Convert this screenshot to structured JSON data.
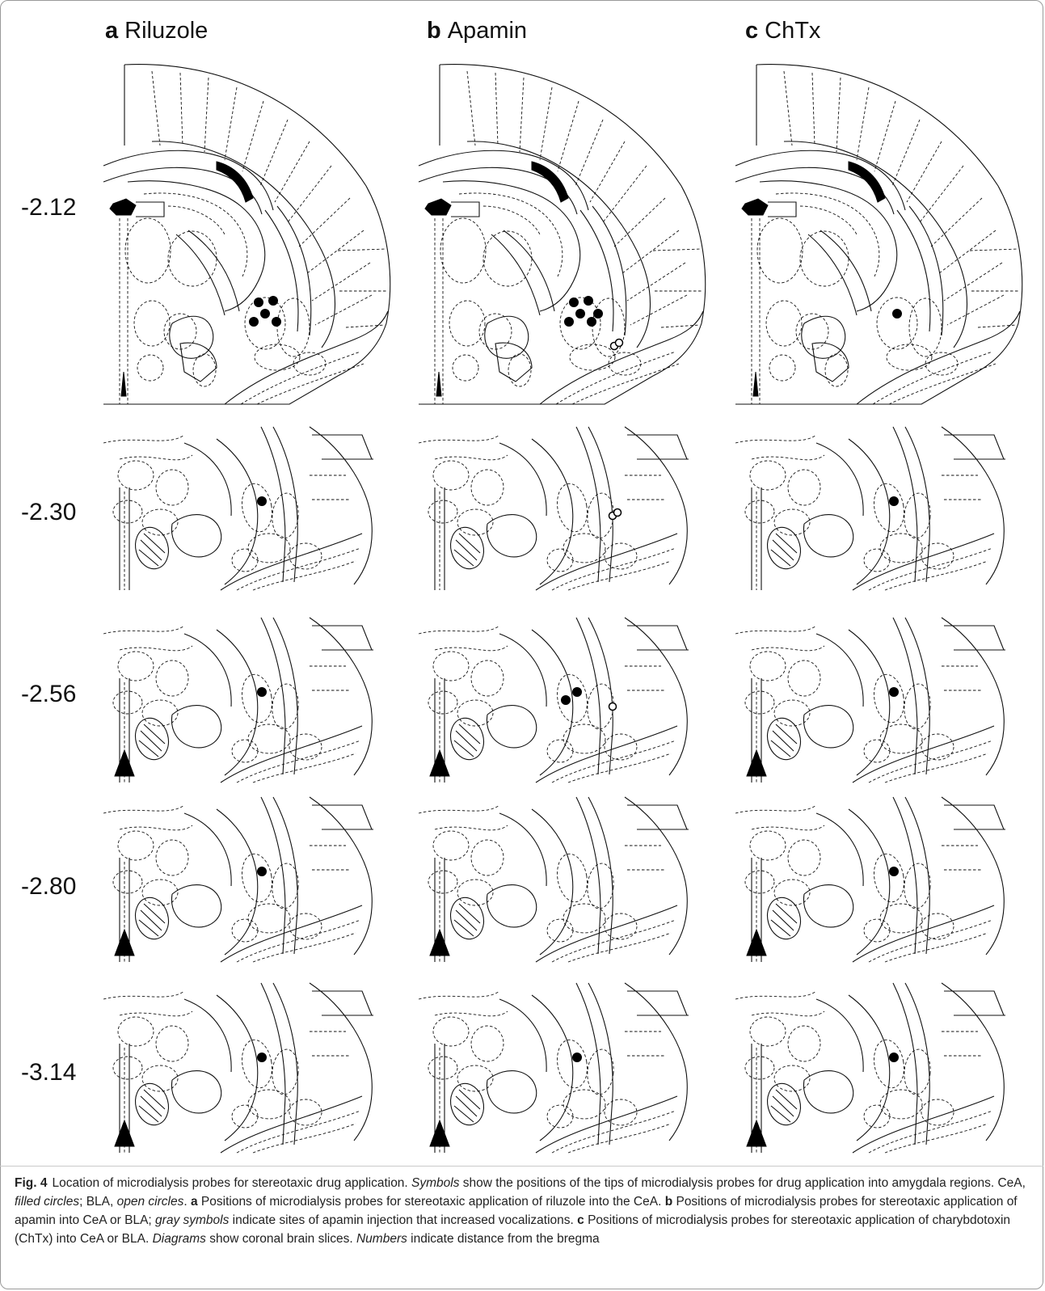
{
  "figure": {
    "panels": [
      {
        "letter": "a",
        "title": "Riluzole"
      },
      {
        "letter": "b",
        "title": "Apamin"
      },
      {
        "letter": "c",
        "title": "ChTx"
      }
    ],
    "rows": [
      {
        "label": "-2.12"
      },
      {
        "label": "-2.30"
      },
      {
        "label": "-2.56"
      },
      {
        "label": "-2.80"
      },
      {
        "label": "-3.14"
      }
    ],
    "probes": [
      {
        "panel": "a",
        "row": 0,
        "sites": [
          {
            "region": "CeA",
            "symbol": "filled",
            "count": 5
          }
        ]
      },
      {
        "panel": "b",
        "row": 0,
        "sites": [
          {
            "region": "CeA",
            "symbol": "filled",
            "count": 6
          },
          {
            "region": "BLA",
            "symbol": "open",
            "count": 2
          }
        ]
      },
      {
        "panel": "c",
        "row": 0,
        "sites": [
          {
            "region": "CeA",
            "symbol": "filled",
            "count": 1
          }
        ]
      },
      {
        "panel": "a",
        "row": 1,
        "sites": [
          {
            "region": "CeA",
            "symbol": "filled",
            "count": 1
          }
        ]
      },
      {
        "panel": "b",
        "row": 1,
        "sites": [
          {
            "region": "BLA",
            "symbol": "open",
            "count": 2
          }
        ]
      },
      {
        "panel": "c",
        "row": 1,
        "sites": [
          {
            "region": "CeA",
            "symbol": "filled",
            "count": 1
          }
        ]
      },
      {
        "panel": "a",
        "row": 2,
        "sites": [
          {
            "region": "CeA",
            "symbol": "filled",
            "count": 1
          }
        ]
      },
      {
        "panel": "b",
        "row": 2,
        "sites": [
          {
            "region": "CeA",
            "symbol": "filled",
            "count": 2
          },
          {
            "region": "BLA",
            "symbol": "open",
            "count": 1
          }
        ]
      },
      {
        "panel": "c",
        "row": 2,
        "sites": [
          {
            "region": "CeA",
            "symbol": "filled",
            "count": 1
          }
        ]
      },
      {
        "panel": "a",
        "row": 3,
        "sites": [
          {
            "region": "CeA",
            "symbol": "filled",
            "count": 1
          }
        ]
      },
      {
        "panel": "b",
        "row": 3,
        "sites": []
      },
      {
        "panel": "c",
        "row": 3,
        "sites": [
          {
            "region": "CeA",
            "symbol": "filled",
            "count": 1
          }
        ]
      },
      {
        "panel": "a",
        "row": 4,
        "sites": [
          {
            "region": "CeA",
            "symbol": "filled",
            "count": 1
          }
        ]
      },
      {
        "panel": "b",
        "row": 4,
        "sites": [
          {
            "region": "CeA",
            "symbol": "filled",
            "count": 1
          }
        ]
      },
      {
        "panel": "c",
        "row": 4,
        "sites": [
          {
            "region": "CeA",
            "symbol": "filled",
            "count": 1
          }
        ]
      }
    ]
  },
  "caption": {
    "fig_num": "Fig. 4",
    "s1": "Location of microdialysis probes for stereotaxic drug application. ",
    "s2_em": "Symbols",
    "s3": " show the positions of the tips of microdialysis probes for drug application into amygdala regions. CeA, ",
    "s4_em": "filled circles",
    "s5": "; BLA, ",
    "s6_em": "open circles",
    "s7": ". ",
    "a_letter": "a",
    "a_text": " Positions of microdialysis probes for stereotaxic application of riluzole into the CeA. ",
    "b_letter": "b",
    "b_text": " Positions of microdialysis probes for stereotaxic application of apamin into CeA or BLA; ",
    "b_em": "gray symbols",
    "b_text2": " indicate sites of apamin injection that increased vocalizations. ",
    "c_letter": "c",
    "c_text": " Positions of microdialysis probes for stereotaxic application of charybdotoxin (ChTx) into CeA or BLA. ",
    "d_em": "Diagrams",
    "d_text": " show coronal brain slices. ",
    "n_em": "Numbers",
    "n_text": " indicate distance from the bregma"
  }
}
